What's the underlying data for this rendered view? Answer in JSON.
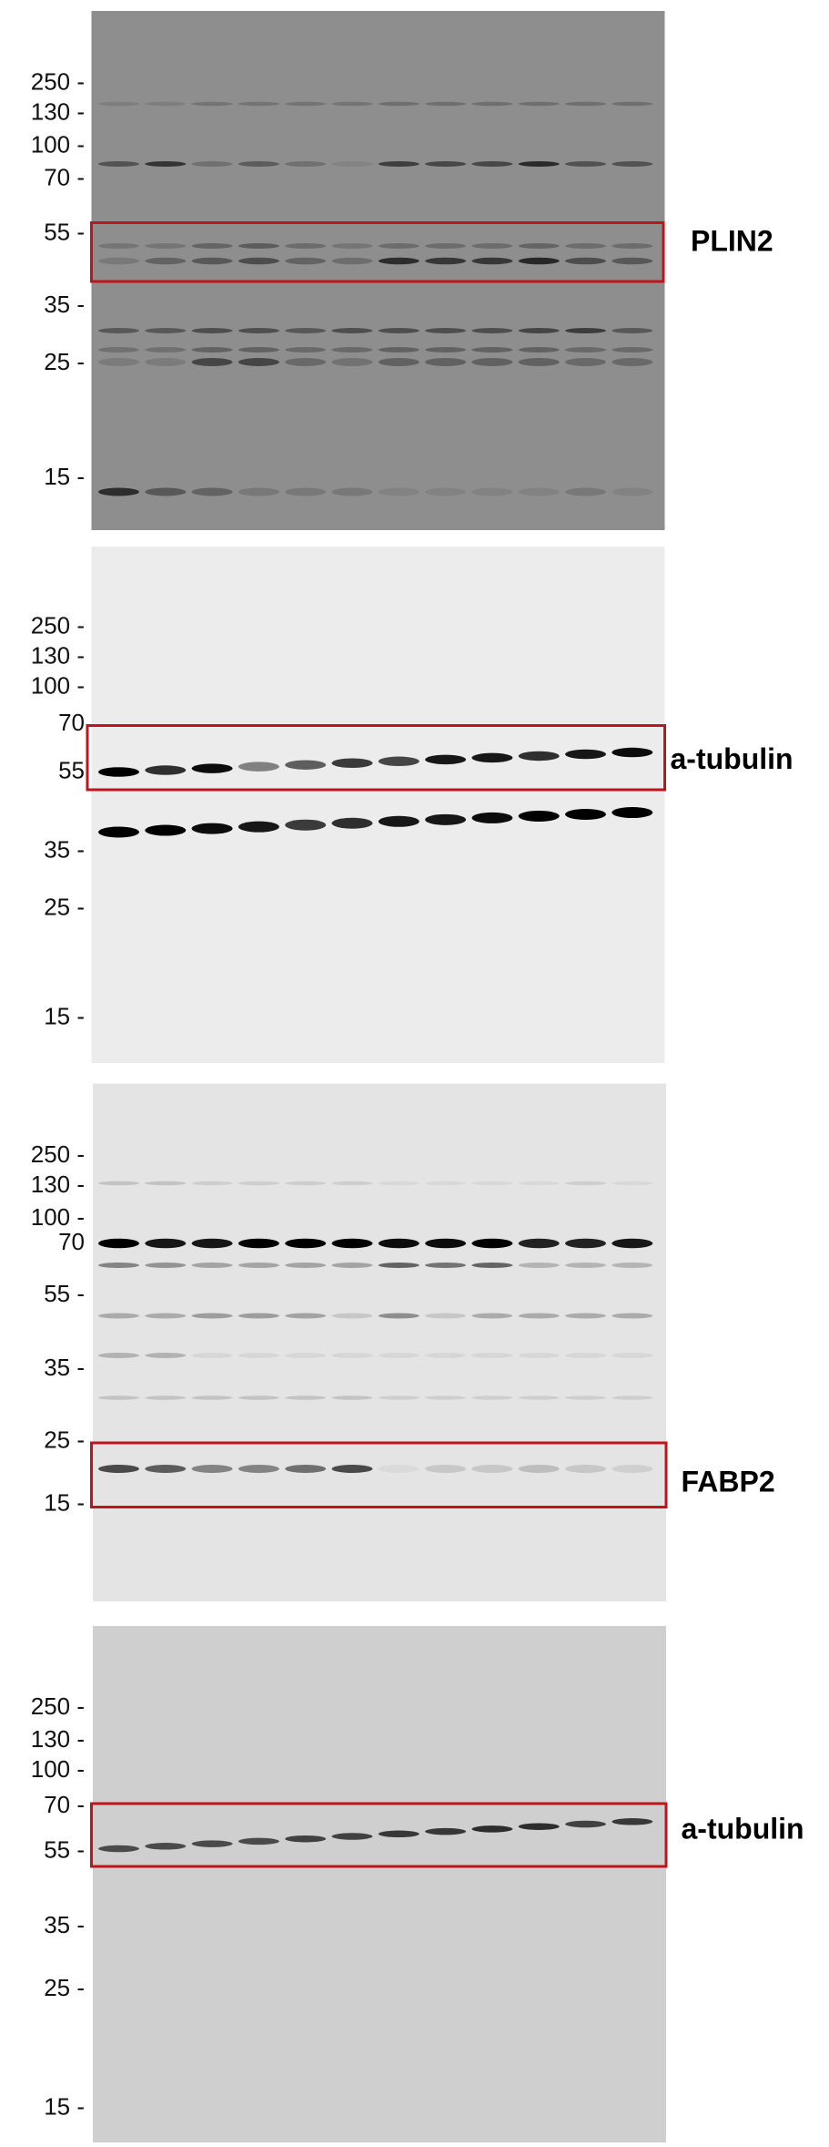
{
  "panels": [
    {
      "markers": [
        "250 -",
        "130 -",
        "100 -",
        "70 -",
        "55 -",
        "35 -",
        "25 -",
        "15 -"
      ],
      "label": "PLIN2"
    },
    {
      "markers": [
        "250 -",
        "130 -",
        "100 -",
        "70",
        "55",
        "35 -",
        "25 -",
        "15 -"
      ],
      "label": "a-tubulin"
    },
    {
      "markers": [
        "250 -",
        "130 -",
        "100 -",
        "70",
        "55 -",
        "35 -",
        "25 -",
        "15 -"
      ],
      "label": "FABP2"
    },
    {
      "markers": [
        "250 -",
        "130 -",
        "100 -",
        "70 -",
        "55 -",
        "35 -",
        "25 -",
        "15 -"
      ],
      "label": "a-tubulin"
    }
  ]
}
